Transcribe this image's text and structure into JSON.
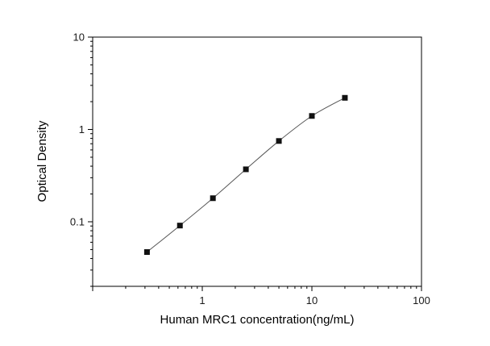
{
  "chart_data": {
    "type": "scatter",
    "title": "",
    "xlabel": "Human MRC1 concentration(ng/mL)",
    "ylabel": "Optical Density",
    "x": [
      0.313,
      0.625,
      1.25,
      2.5,
      5,
      10,
      20
    ],
    "y": [
      0.047,
      0.091,
      0.18,
      0.37,
      0.75,
      1.4,
      2.2
    ],
    "x_scale": "log",
    "y_scale": "log",
    "xlim": [
      0.1,
      100
    ],
    "ylim": [
      0.02,
      10
    ],
    "x_ticks": [
      1,
      10,
      100
    ],
    "x_tick_labels": [
      "1",
      "10",
      "100"
    ],
    "y_ticks": [
      0.1,
      1,
      10
    ],
    "y_tick_labels": [
      "0.1",
      "1",
      "10"
    ],
    "grid": "off",
    "legend": "none",
    "marker": "filled-square",
    "marker_color": "#111111",
    "line_color": "#555555",
    "axis_color": "#000000",
    "background_color": "#ffffff"
  }
}
